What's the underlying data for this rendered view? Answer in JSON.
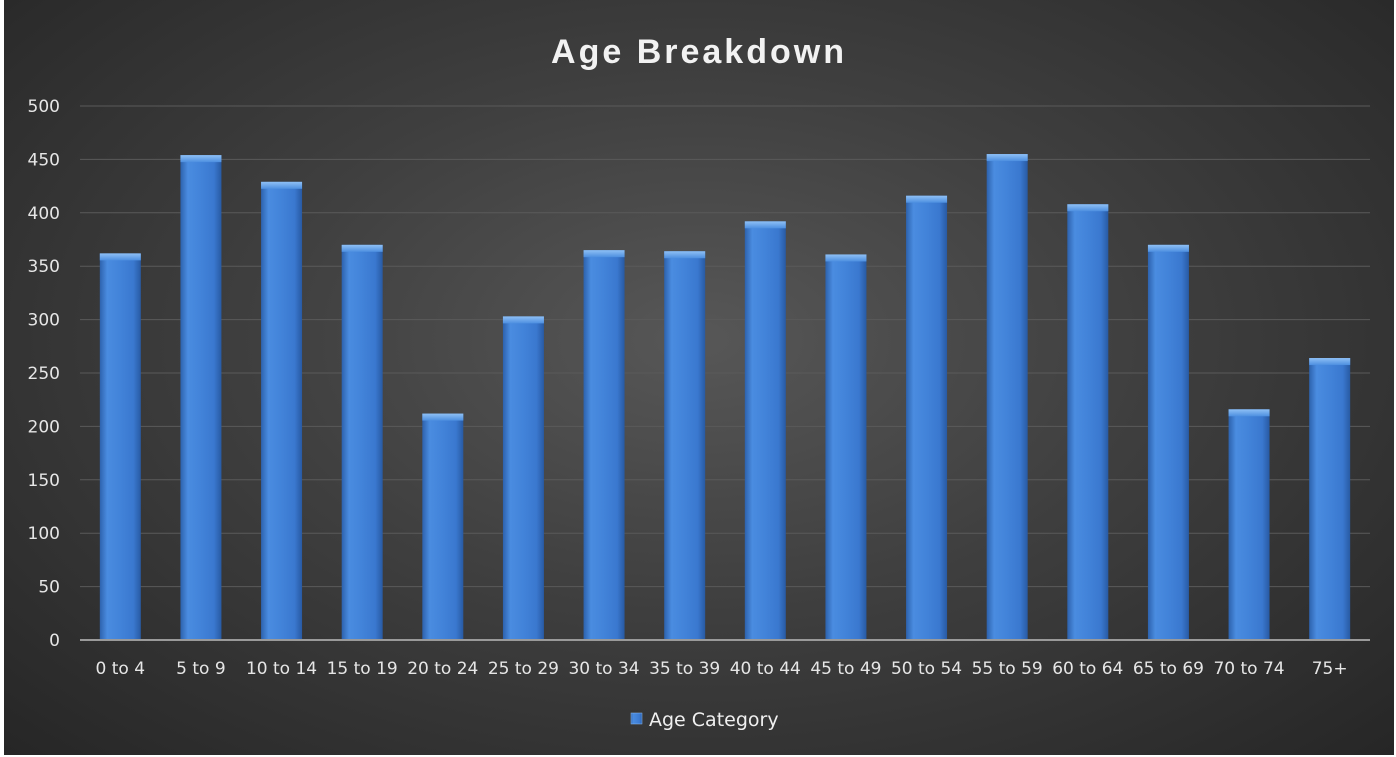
{
  "chart_data": {
    "type": "bar",
    "title": "Age Breakdown",
    "xlabel": "",
    "ylabel": "",
    "ylim": [
      0,
      500
    ],
    "yticks": [
      0,
      50,
      100,
      150,
      200,
      250,
      300,
      350,
      400,
      450,
      500
    ],
    "categories": [
      "0 to 4",
      "5 to 9",
      "10 to 14",
      "15 to 19",
      "20 to 24",
      "25 to 29",
      "30 to 34",
      "35 to 39",
      "40 to 44",
      "45 to 49",
      "50 to 54",
      "55 to 59",
      "60 to 64",
      "65 to 69",
      "70 to 74",
      "75+"
    ],
    "series": [
      {
        "name": "Age Category",
        "color": "#3f7fd6",
        "values": [
          362,
          454,
          429,
          370,
          212,
          303,
          365,
          364,
          392,
          361,
          416,
          455,
          408,
          370,
          216,
          264
        ]
      }
    ],
    "grid": true,
    "legend_position": "bottom"
  },
  "colors": {
    "bar": "#3f7fd6",
    "bar_highlight": "#6aa5ee",
    "bar_dark": "#2a5ea8",
    "title": "#f2f2f2",
    "text": "#e6e6e6",
    "grid": "#5a5a5a"
  }
}
